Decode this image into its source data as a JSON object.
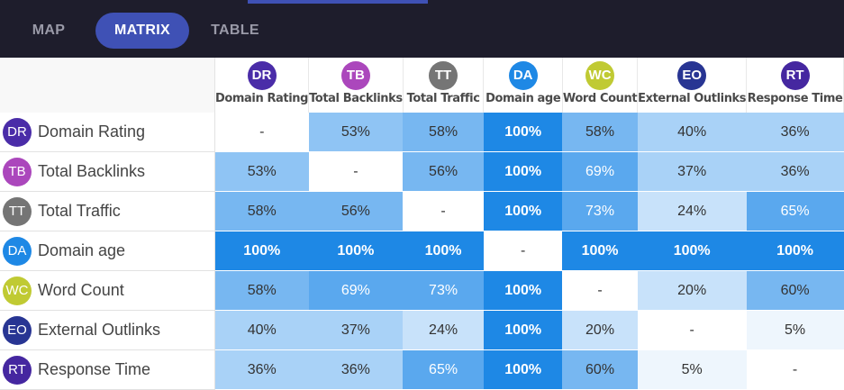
{
  "tabs": [
    {
      "label": "MAP",
      "active": false
    },
    {
      "label": "MATRIX",
      "active": true
    },
    {
      "label": "TABLE",
      "active": false
    }
  ],
  "metrics": [
    {
      "abbr": "DR",
      "name": "Domain Rating",
      "color": "#4a2ca8"
    },
    {
      "abbr": "TB",
      "name": "Total Backlinks",
      "color": "#ab47bc"
    },
    {
      "abbr": "TT",
      "name": "Total Traffic",
      "color": "#757575"
    },
    {
      "abbr": "DA",
      "name": "Domain age",
      "color": "#1e88e5"
    },
    {
      "abbr": "WC",
      "name": "Word Count",
      "color": "#c0ca33"
    },
    {
      "abbr": "EO",
      "name": "External Outlinks",
      "color": "#283593"
    },
    {
      "abbr": "RT",
      "name": "Response Time",
      "color": "#4527a0"
    }
  ],
  "column_headers": [
    "Domain Rating",
    "Total Backlinks",
    "Total Traffic",
    "Domain age",
    "Word Count",
    "External Outlinks",
    "Response Time"
  ],
  "matrix": [
    [
      "-",
      "53%",
      "58%",
      "100%",
      "58%",
      "40%",
      "36%"
    ],
    [
      "53%",
      "-",
      "56%",
      "100%",
      "69%",
      "37%",
      "36%"
    ],
    [
      "58%",
      "56%",
      "-",
      "100%",
      "73%",
      "24%",
      "65%"
    ],
    [
      "100%",
      "100%",
      "100%",
      "-",
      "100%",
      "100%",
      "100%"
    ],
    [
      "58%",
      "69%",
      "73%",
      "100%",
      "-",
      "20%",
      "60%"
    ],
    [
      "40%",
      "37%",
      "24%",
      "100%",
      "20%",
      "-",
      "5%"
    ],
    [
      "36%",
      "36%",
      "65%",
      "100%",
      "60%",
      "5%",
      "-"
    ]
  ]
}
